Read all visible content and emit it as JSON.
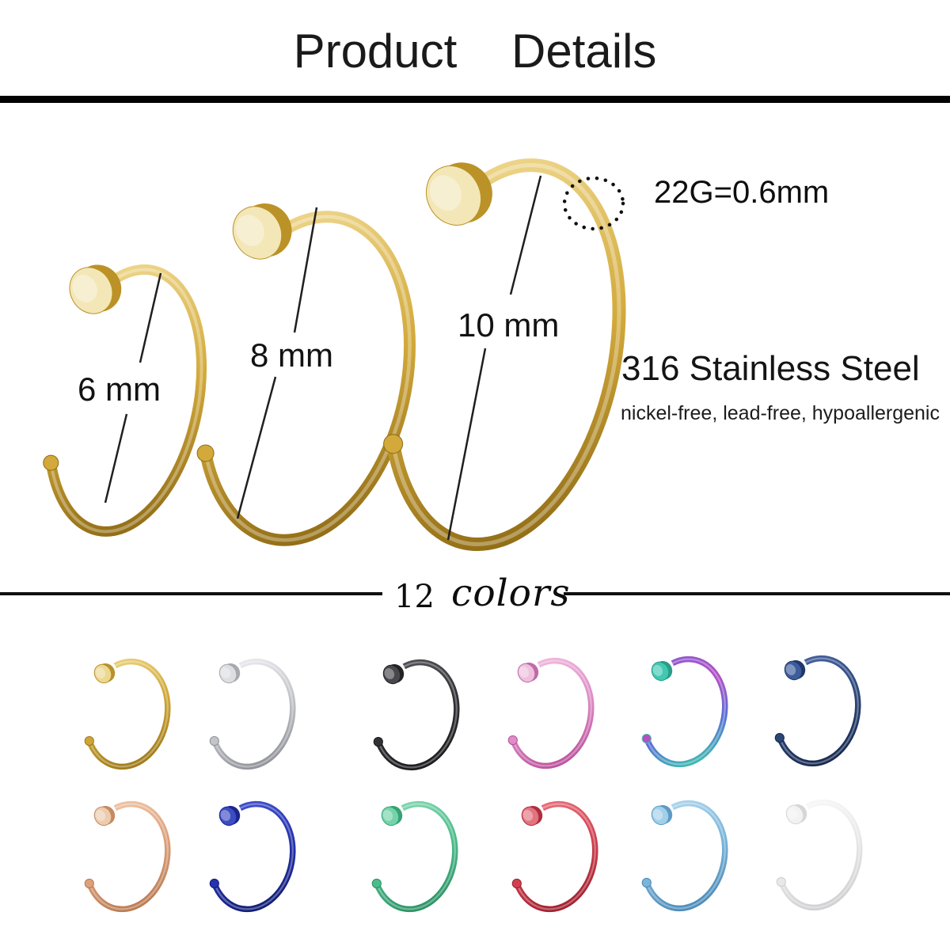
{
  "header": {
    "title": "Product Details"
  },
  "gauge": {
    "label": "22G=0.6mm"
  },
  "material": {
    "heading": "316 Stainless Steel",
    "subheading": "nickel-free, lead-free, hypoallergenic"
  },
  "sizes": [
    {
      "label": "6 mm",
      "diameter_mm": 6
    },
    {
      "label": "8 mm",
      "diameter_mm": 8
    },
    {
      "label": "10 mm",
      "diameter_mm": 10
    }
  ],
  "colors_section": {
    "count": "12",
    "word": "colors"
  },
  "gold_ring": {
    "stops": [
      "#efd88f",
      "#d2a93a",
      "#8e6a14"
    ],
    "disc_face": "#f3e7b8",
    "disc_rim": "#bb9227"
  },
  "swatches": [
    {
      "name": "gold",
      "stops": [
        "#ecd27f",
        "#cfa636",
        "#9c7818"
      ],
      "disc": "#edd890",
      "rim": "#b8912c"
    },
    {
      "name": "silver",
      "stops": [
        "#ececef",
        "#c2c4c9",
        "#8f9197"
      ],
      "disc": "#dcdee2",
      "rim": "#a7a9af"
    },
    {
      "name": "black",
      "stops": [
        "#515156",
        "#323236",
        "#1b1b1e"
      ],
      "disc": "#47474c",
      "rim": "#232326"
    },
    {
      "name": "pink",
      "stops": [
        "#f2bade",
        "#dd8ec6",
        "#bb4f9b"
      ],
      "disc": "#eec0de",
      "rim": "#c06aa8"
    },
    {
      "name": "rainbow",
      "stops": [
        "#8a5ad0",
        "#b44fc4",
        "#5a6ed8",
        "#3fbfae"
      ],
      "disc": "#40c8b1",
      "rim": "#2a9c88"
    },
    {
      "name": "navy-blue",
      "stops": [
        "#46619f",
        "#2b4577",
        "#17284e"
      ],
      "disc": "#3d5c9c",
      "rim": "#20386a"
    },
    {
      "name": "rose-gold",
      "stops": [
        "#f0c5a6",
        "#dca07b",
        "#b97951"
      ],
      "disc": "#edcbae",
      "rim": "#c68a60"
    },
    {
      "name": "royal-blue",
      "stops": [
        "#4150cc",
        "#2533ad",
        "#121c73"
      ],
      "disc": "#3c4cc2",
      "rim": "#1c278c"
    },
    {
      "name": "green",
      "stops": [
        "#82d8b0",
        "#4dbb8c",
        "#2b9164"
      ],
      "disc": "#74d3aa",
      "rim": "#37a274"
    },
    {
      "name": "red",
      "stops": [
        "#e9707c",
        "#cf4150",
        "#9f1f2e"
      ],
      "disc": "#e2737f",
      "rim": "#af2e3c"
    },
    {
      "name": "light-blue",
      "stops": [
        "#aed6ee",
        "#7ab4d9",
        "#4a89b6"
      ],
      "disc": "#a2cfe9",
      "rim": "#5c9bc4"
    },
    {
      "name": "white",
      "stops": [
        "#f8f8f8",
        "#e8e8e9",
        "#cfcfd2"
      ],
      "disc": "#f2f2f3",
      "rim": "#d6d6d8"
    }
  ]
}
